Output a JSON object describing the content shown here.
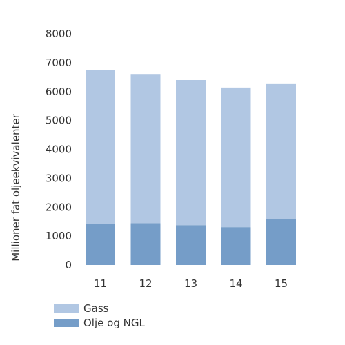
{
  "chart_data": {
    "type": "bar",
    "stacked": true,
    "categories": [
      "11",
      "12",
      "13",
      "14",
      "15"
    ],
    "series": [
      {
        "name": "Olje og NGL",
        "values": [
          1420,
          1450,
          1380,
          1310,
          1590
        ],
        "color": "#759dc8"
      },
      {
        "name": "Gass",
        "values": [
          5330,
          5160,
          5020,
          4830,
          4670
        ],
        "color": "#b1c7e3"
      }
    ],
    "totals": [
      6750,
      6610,
      6400,
      6140,
      6260
    ],
    "title": "",
    "xlabel": "",
    "ylabel": "Millioner fat oljeekvivalenter",
    "ylim": [
      0,
      8000
    ],
    "yticks": [
      0,
      1000,
      2000,
      3000,
      4000,
      5000,
      6000,
      7000,
      8000
    ],
    "grid": false,
    "legend_position": "bottom-left",
    "legend_order": [
      "Gass",
      "Olje og NGL"
    ]
  }
}
